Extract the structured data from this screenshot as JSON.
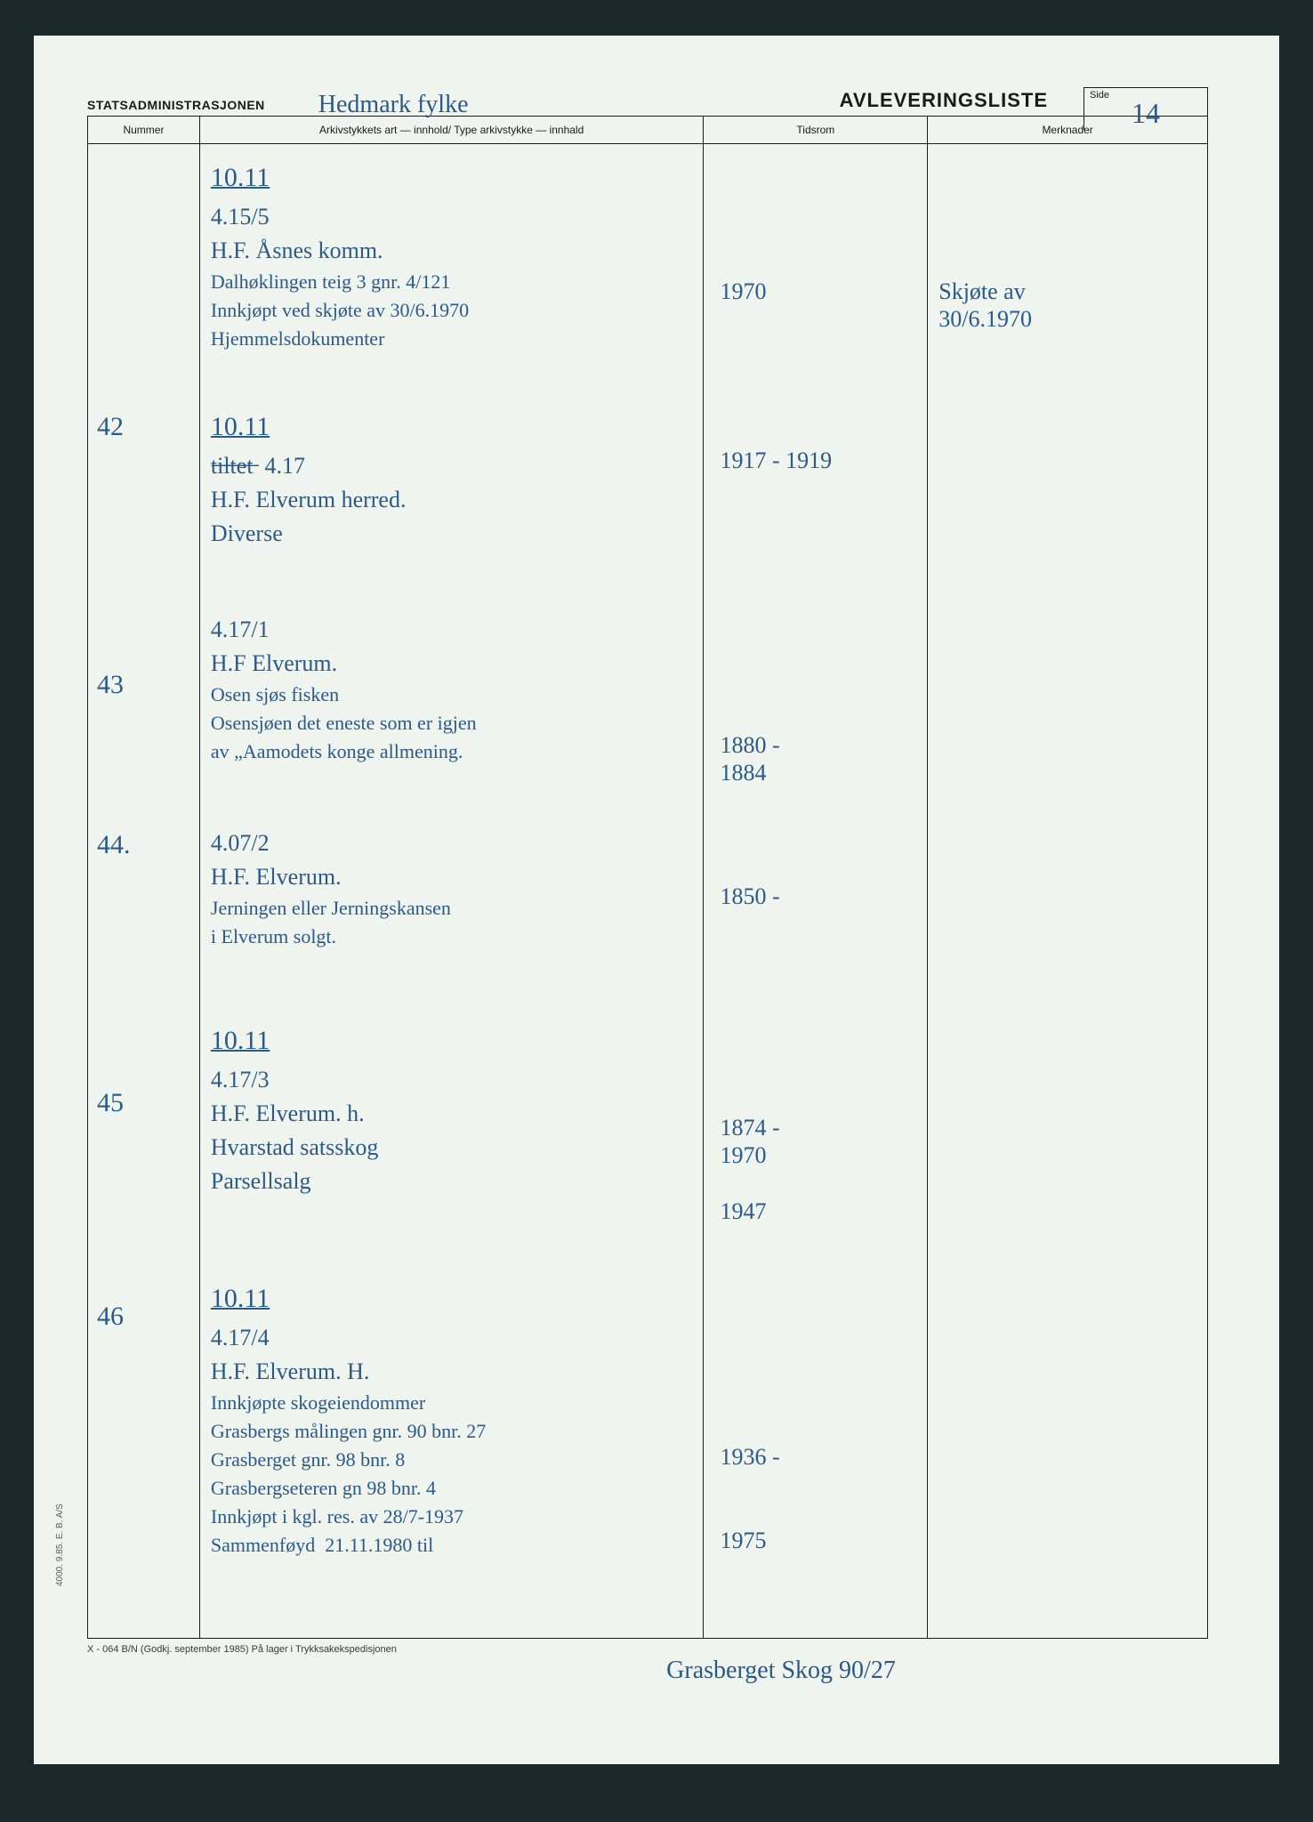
{
  "colors": {
    "page_bg": "#f0f4ee",
    "outer_bg": "#1a2a2a",
    "print_text": "#1a1a1a",
    "handwriting": "#2a5a8a",
    "border": "#1a1a1a"
  },
  "fonts": {
    "printed": "Arial, Helvetica, sans-serif",
    "printed_size_header": 14,
    "printed_size_title": 22,
    "printed_size_colhead": 12,
    "handwritten": "Brush Script MT, cursive",
    "handwritten_size_lg": 30,
    "handwritten_size_md": 26,
    "handwritten_size_sm": 22
  },
  "header": {
    "agency": "STATSADMINISTRASJONEN",
    "title": "AVLEVERINGSLISTE",
    "handwritten_subtitle": "Hedmark fylke",
    "side_label": "Side",
    "side_number": "14"
  },
  "columns": {
    "nummer": "Nummer",
    "innhold": "Arkivstykkets art — innhold/\nType arkivstykke — innhald",
    "tidsrom": "Tidsrom",
    "merknader": "Merknader"
  },
  "side_print": "4000. 9.85. E. B. A/S",
  "footer": {
    "printed": "X - 064 B/N (Godkj. september 1985) På lager i Trykksakekspedisjonen",
    "handwritten": "Grasberget Skog 90/27"
  },
  "entries": [
    {
      "nummer": "",
      "content_lines": [
        {
          "text": "10.11",
          "style": "underline",
          "size": "lg"
        },
        {
          "text": "4.15/5",
          "size": "md"
        },
        {
          "text": "H.F. Åsnes komm.",
          "size": "md"
        },
        {
          "text": "Dalhøklingen teig 3 gnr. 4/121",
          "size": "sm"
        },
        {
          "text": "Innkjøpt ved skjøte av 30/6.1970",
          "size": "sm"
        },
        {
          "text": "Hjemmelsdokumenter",
          "size": "sm"
        }
      ],
      "tidsrom": "1970",
      "merknader": "Skjøte av\n30/6.1970"
    },
    {
      "nummer": "42",
      "content_lines": [
        {
          "text": "10.11",
          "style": "underline",
          "size": "lg"
        },
        {
          "text": "t̶i̶l̶t̶e̶t̶  4.17",
          "size": "md"
        },
        {
          "text": "H.F. Elverum herred.",
          "size": "md"
        },
        {
          "text": "Diverse",
          "size": "md"
        }
      ],
      "tidsrom": "1917 - 1919",
      "merknader": ""
    },
    {
      "nummer": "43",
      "content_lines": [
        {
          "text": "4.17/1",
          "size": "md"
        },
        {
          "text": "H.F Elverum.",
          "size": "md"
        },
        {
          "text": "Osen sjøs fisken",
          "size": "sm"
        },
        {
          "text": "Osensjøen det eneste som er igjen",
          "size": "sm"
        },
        {
          "text": "av „Aamodets konge allmening.",
          "size": "sm"
        }
      ],
      "tidsrom": "1880 -\n1884",
      "merknader": ""
    },
    {
      "nummer": "44.",
      "content_lines": [
        {
          "text": "4.07/2",
          "size": "md"
        },
        {
          "text": "H.F. Elverum.",
          "size": "md"
        },
        {
          "text": "Jerningen eller Jerningskansen",
          "size": "sm"
        },
        {
          "text": "i Elverum solgt.",
          "size": "sm"
        }
      ],
      "tidsrom": "1850 -",
      "merknader": ""
    },
    {
      "nummer": "45",
      "content_lines": [
        {
          "text": "10.11",
          "style": "underline",
          "size": "lg"
        },
        {
          "text": "4.17/3",
          "size": "md"
        },
        {
          "text": "H.F. Elverum. h.",
          "size": "md"
        },
        {
          "text": "Hvarstad satsskog",
          "size": "md"
        },
        {
          "text": "Parsellsalg",
          "size": "md"
        }
      ],
      "tidsrom": "1874 -\n1970\n \n1947",
      "merknader": ""
    },
    {
      "nummer": "46",
      "content_lines": [
        {
          "text": "10.11",
          "style": "underline",
          "size": "lg"
        },
        {
          "text": "4.17/4",
          "size": "md"
        },
        {
          "text": "H.F. Elverum. H.",
          "size": "md"
        },
        {
          "text": "Innkjøpte skogeiendommer",
          "size": "sm"
        },
        {
          "text": "Grasbergs målingen gnr. 90 bnr. 27",
          "size": "sm"
        },
        {
          "text": "Grasberget gnr. 98 bnr. 8",
          "size": "sm"
        },
        {
          "text": "Grasbergseteren gn 98 bnr. 4",
          "size": "sm"
        },
        {
          "text": "Innkjøpt i kgl. res. av 28/7-1937",
          "size": "sm"
        },
        {
          "text": "Sammenføyd  21.11.1980 til",
          "size": "sm"
        }
      ],
      "tidsrom": "1936 -\n \n \n1975",
      "merknader": ""
    }
  ],
  "layout": {
    "entry_top_offsets": [
      20,
      300,
      530,
      770,
      990,
      1280
    ],
    "line_height": 38,
    "nummer_top_offsets": [
      0,
      300,
      590,
      770,
      1060,
      1300
    ],
    "tidsrom_top_offsets": [
      150,
      340,
      660,
      830,
      1090,
      1460
    ],
    "merknader_top_offsets": [
      150,
      0,
      0,
      0,
      0,
      0
    ]
  }
}
